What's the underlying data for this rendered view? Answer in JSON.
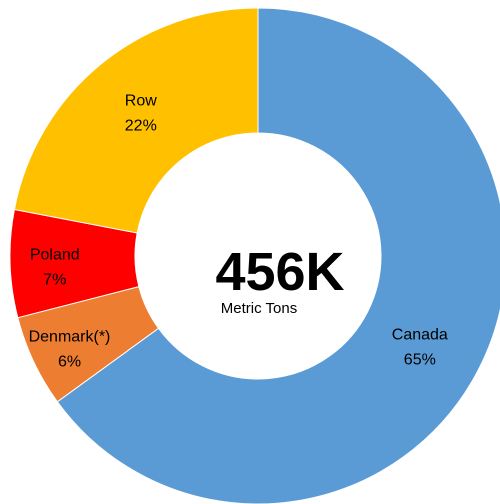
{
  "chart_data": {
    "type": "pie",
    "subtype": "donut",
    "center_text": {
      "total": "456K",
      "unit": "Metric Tons"
    },
    "slices": [
      {
        "name": "Canada",
        "percent_label": "65%",
        "value": 65,
        "color": "#5B9BD5"
      },
      {
        "name": "Denmark(*)",
        "percent_label": "6%",
        "value": 6,
        "color": "#ED7D31"
      },
      {
        "name": "Poland",
        "percent_label": "7%",
        "value": 7,
        "color": "#FF0000"
      },
      {
        "name": "Row",
        "percent_label": "22%",
        "value": 22,
        "color": "#FFC000"
      }
    ],
    "legend": "none",
    "slice_order": "clockwise-from-top"
  }
}
